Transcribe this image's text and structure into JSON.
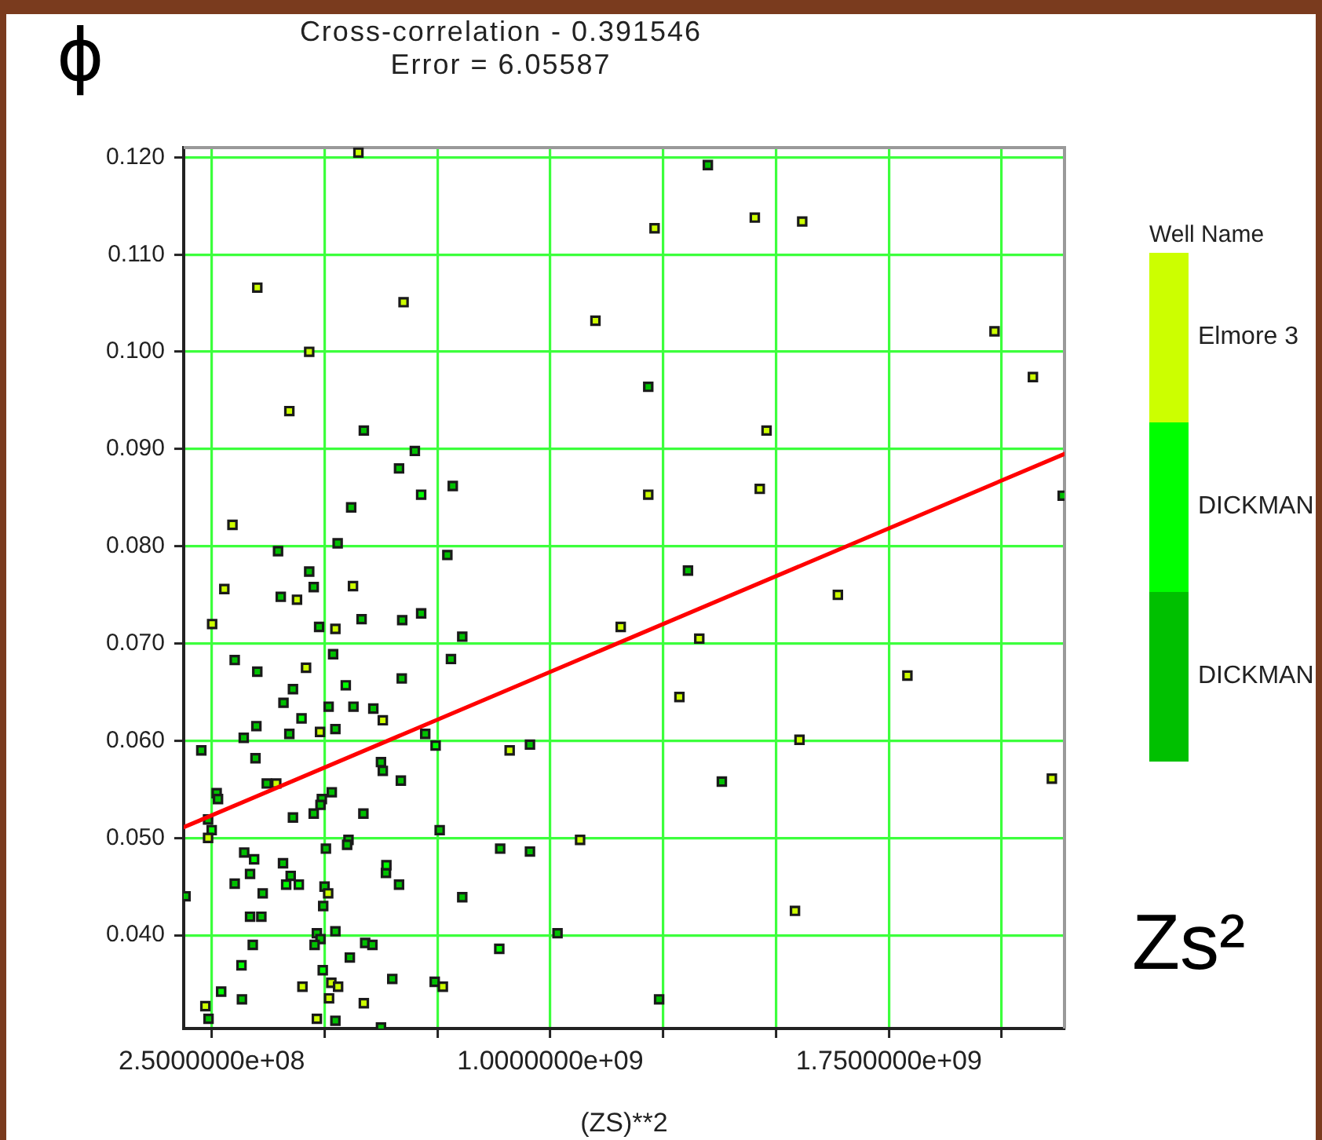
{
  "chart_data": {
    "type": "scatter",
    "title": "Cross-correlation - 0.391546",
    "subtitle": "Error = 6.05587",
    "xlabel": "(ZS)**2",
    "ylabel": "ϕ",
    "legend_title": "Well Name",
    "annotations": [
      "Zs²"
    ],
    "series": [
      {
        "name": "Elmore 3",
        "color": "#ccff00",
        "x": [
          575000000.0,
          351000000.0,
          675000000.0,
          1100000000.0,
          466000000.0,
          422000000.0,
          296000000.0,
          1231000000.0,
          1453000000.0,
          1558000000.0,
          1984000000.0,
          2069000000.0,
          1479000000.0,
          1217000000.0,
          1464000000.0,
          1156000000.0,
          1637000000.0,
          1330000000.0,
          1791000000.0,
          1286000000.0,
          1552000000.0,
          2111000000.0,
          1542000000.0,
          278000000.0,
          563000000.0,
          439000000.0,
          251000000.0,
          524000000.0,
          459000000.0,
          629000000.0,
          490000000.0,
          910000000.0,
          393000000.0,
          242000000.0,
          1066000000.0,
          508000000.0,
          762000000.0,
          515000000.0,
          530000000.0,
          451000000.0,
          510000000.0,
          587000000.0,
          236000000.0,
          483000000.0
        ],
        "values": [
          0.1205,
          0.1066,
          0.1051,
          0.1032,
          0.1,
          0.0939,
          0.0822,
          0.1127,
          0.1138,
          0.1134,
          0.1021,
          0.0974,
          0.0919,
          0.0853,
          0.0859,
          0.0717,
          0.075,
          0.0705,
          0.0667,
          0.0645,
          0.0601,
          0.0561,
          0.0425,
          0.0756,
          0.0759,
          0.0745,
          0.072,
          0.0715,
          0.0675,
          0.0621,
          0.0609,
          0.059,
          0.0556,
          0.05,
          0.0498,
          0.0443,
          0.0347,
          0.0351,
          0.0347,
          0.0347,
          0.0335,
          0.033,
          0.0327,
          0.0314
        ]
      },
      {
        "name": "DICKMAN",
        "color": "#00ff00",
        "x": [
          714000000.0,
          547000000.0,
          449000000.0,
          746000000.0,
          250000000.0,
          344000000.0,
          637000000.0,
          415000000.0,
          443000000.0,
          887000000.0,
          316000000.0,
          496000000.0,
          271000000.0
        ],
        "values": [
          0.0853,
          0.0657,
          0.0623,
          0.0595,
          0.0508,
          0.0478,
          0.0472,
          0.0452,
          0.0452,
          0.0386,
          0.0369,
          0.0364,
          0.0342
        ]
      },
      {
        "name": "DICKMAN",
        "color": "#00c000",
        "x": [
          587000000.0,
          700000000.0,
          665000000.0,
          784000000.0,
          559000000.0,
          397000000.0,
          529000000.0,
          772000000.0,
          466000000.0,
          1349000000.0,
          1217000000.0,
          2135000000.0,
          1305000000.0,
          1380000000.0,
          1241000000.0,
          476000000.0,
          403000000.0,
          488000000.0,
          582000000.0,
          672000000.0,
          714000000.0,
          805000000.0,
          301000000.0,
          351000000.0,
          519000000.0,
          780000000.0,
          430000000.0,
          671000000.0,
          409000000.0,
          509000000.0,
          564000000.0,
          608000000.0,
          349000000.0,
          524000000.0,
          321000000.0,
          422000000.0,
          723000000.0,
          955000000.0,
          227000000.0,
          347000000.0,
          625000000.0,
          629000000.0,
          372000000.0,
          669000000.0,
          261000000.0,
          264000000.0,
          516000000.0,
          494000000.0,
          491000000.0,
          476000000.0,
          586000000.0,
          430000000.0,
          242000000.0,
          755000000.0,
          553000000.0,
          550000000.0,
          503000000.0,
          889000000.0,
          955000000.0,
          322000000.0,
          408000000.0,
          636000000.0,
          335000000.0,
          425000000.0,
          301000000.0,
          500000000.0,
          665000000.0,
          363000000.0,
          192000000.0,
          805000000.0,
          497000000.0,
          335000000.0,
          360000000.0,
          524000000.0,
          1016000000.0,
          483000000.0,
          491000000.0,
          478000000.0,
          341000000.0,
          590000000.0,
          606000000.0,
          556000000.0,
          650000000.0,
          744000000.0,
          317000000.0,
          243000000.0,
          524000000.0,
          625000000.0
        ],
        "values": [
          0.0919,
          0.0898,
          0.088,
          0.0862,
          0.084,
          0.0795,
          0.0803,
          0.0791,
          0.0774,
          0.1192,
          0.0964,
          0.0852,
          0.0775,
          0.0558,
          0.0334,
          0.0758,
          0.0748,
          0.0717,
          0.0725,
          0.0724,
          0.0731,
          0.0707,
          0.0683,
          0.0671,
          0.0689,
          0.0684,
          0.0653,
          0.0664,
          0.0639,
          0.0635,
          0.0635,
          0.0633,
          0.0615,
          0.0612,
          0.0603,
          0.0607,
          0.0607,
          0.0596,
          0.059,
          0.0582,
          0.0578,
          0.0569,
          0.0556,
          0.0559,
          0.0546,
          0.054,
          0.0547,
          0.054,
          0.0534,
          0.0525,
          0.0525,
          0.0521,
          0.0519,
          0.0508,
          0.0498,
          0.0493,
          0.0489,
          0.0489,
          0.0486,
          0.0485,
          0.0474,
          0.0464,
          0.0463,
          0.0461,
          0.0453,
          0.045,
          0.0452,
          0.0443,
          0.044,
          0.0439,
          0.043,
          0.0419,
          0.0419,
          0.0404,
          0.0402,
          0.0402,
          0.0396,
          0.039,
          0.039,
          0.0392,
          0.039,
          0.0377,
          0.0355,
          0.0352,
          0.0334,
          0.0314,
          0.0312,
          0.0305
        ]
      },
      {
        "type": "line",
        "color": "#ff0000",
        "marker": "none",
        "x": [
          188000000.0,
          2139000000.0
        ],
        "values": [
          0.0511,
          0.0895
        ]
      }
    ],
    "xlim": [
      188000000.0,
      2139000000.0
    ],
    "ylim": [
      0.0304,
      0.121
    ],
    "xticks": [
      {
        "value": 250000000.0,
        "label": "2.5000000e+08"
      },
      {
        "value": 500000000.0,
        "label": null
      },
      {
        "value": 750000000.0,
        "label": null
      },
      {
        "value": 1000000000.0,
        "label": "1.0000000e+09"
      },
      {
        "value": 1250000000.0,
        "label": null
      },
      {
        "value": 1500000000.0,
        "label": null
      },
      {
        "value": 1750000000.0,
        "label": "1.7500000e+09"
      },
      {
        "value": 2000000000.0,
        "label": null
      }
    ],
    "yticks": [
      {
        "value": 0.04,
        "label": "0.040"
      },
      {
        "value": 0.05,
        "label": "0.050"
      },
      {
        "value": 0.06,
        "label": "0.060"
      },
      {
        "value": 0.07,
        "label": "0.070"
      },
      {
        "value": 0.08,
        "label": "0.080"
      },
      {
        "value": 0.09,
        "label": "0.090"
      },
      {
        "value": 0.1,
        "label": "0.100"
      },
      {
        "value": 0.11,
        "label": "0.110"
      },
      {
        "value": 0.12,
        "label": "0.120"
      }
    ],
    "grid": true,
    "legend": "right",
    "marker": "square"
  }
}
